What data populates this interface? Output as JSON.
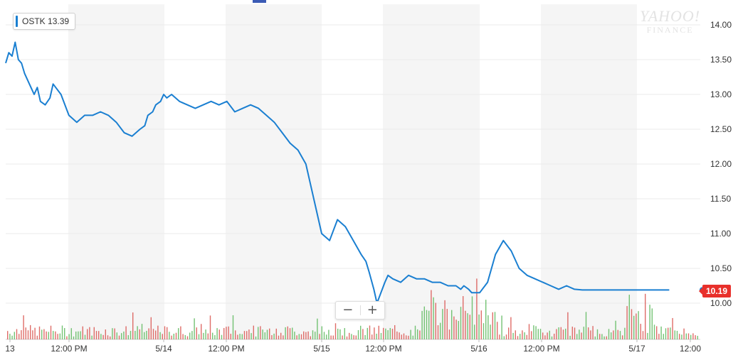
{
  "legend": {
    "symbol": "OSTK",
    "value": "13.39"
  },
  "last_price": "10.19",
  "watermark": {
    "line1": "YAHOO!",
    "line2": "FINANCE"
  },
  "zoom": {
    "minus": "−",
    "plus": "+"
  },
  "colors": {
    "line": "#1a7fd1",
    "up_volume": "#5cb85c",
    "down_volume": "#d9534f",
    "shade": "#f5f5f5",
    "grid": "#ebebeb",
    "price_badge": "#e8302b"
  },
  "chart_data": {
    "type": "line",
    "title": "",
    "xlabel": "",
    "ylabel": "",
    "ylim": [
      9.5,
      14.2
    ],
    "y_ticks": [
      "14.00",
      "13.50",
      "13.00",
      "12.50",
      "12.00",
      "11.50",
      "11.00",
      "10.50",
      "10.00"
    ],
    "x_ticks": [
      "13",
      "12:00 PM",
      "5/14",
      "12:00 PM",
      "5/15",
      "12:00 PM",
      "5/16",
      "12:00 PM",
      "5/17",
      "12:00"
    ],
    "grid": true,
    "legend_position": "top-left",
    "x": [
      0,
      0.02,
      0.04,
      0.06,
      0.08,
      0.1,
      0.12,
      0.15,
      0.18,
      0.2,
      0.22,
      0.25,
      0.28,
      0.3,
      0.35,
      0.4,
      0.45,
      0.5,
      0.55,
      0.6,
      0.65,
      0.7,
      0.75,
      0.8,
      0.85,
      0.88,
      0.9,
      0.93,
      0.95,
      0.98,
      1.0,
      1.02,
      1.05,
      1.1,
      1.15,
      1.2,
      1.25,
      1.3,
      1.35,
      1.4,
      1.45,
      1.5,
      1.55,
      1.6,
      1.65,
      1.7,
      1.75,
      1.8,
      1.85,
      1.9,
      1.95,
      2.0,
      2.05,
      2.1,
      2.15,
      2.2,
      2.25,
      2.28,
      2.3,
      2.33,
      2.35,
      2.4,
      2.42,
      2.45,
      2.5,
      2.55,
      2.6,
      2.65,
      2.7,
      2.75,
      2.8,
      2.85,
      2.88,
      2.9,
      2.93,
      2.95,
      3.0,
      3.05,
      3.1,
      3.15,
      3.2,
      3.25,
      3.3,
      3.35,
      3.4,
      3.45,
      3.5,
      3.55,
      3.6,
      3.65,
      3.7,
      3.75,
      3.8,
      3.85,
      3.88,
      3.9,
      3.92,
      3.95,
      4.0,
      4.05,
      4.1,
      4.15,
      4.2
    ],
    "series": [
      {
        "values": [
          13.45,
          13.6,
          13.55,
          13.75,
          13.5,
          13.45,
          13.3,
          13.15,
          13.0,
          13.1,
          12.9,
          12.85,
          12.95,
          13.15,
          13.0,
          12.7,
          12.6,
          12.7,
          12.7,
          12.75,
          12.7,
          12.6,
          12.45,
          12.4,
          12.5,
          12.55,
          12.7,
          12.75,
          12.85,
          12.9,
          13.0,
          12.95,
          13.0,
          12.9,
          12.85,
          12.8,
          12.85,
          12.9,
          12.85,
          12.9,
          12.75,
          12.8,
          12.85,
          12.8,
          12.7,
          12.6,
          12.45,
          12.3,
          12.2,
          12.0,
          11.5,
          11.0,
          10.9,
          11.2,
          11.1,
          10.9,
          10.7,
          10.6,
          10.45,
          10.2,
          10.0,
          10.3,
          10.4,
          10.35,
          10.3,
          10.4,
          10.35,
          10.35,
          10.3,
          10.3,
          10.25,
          10.25,
          10.2,
          10.25,
          10.2,
          10.15,
          10.15,
          10.3,
          10.7,
          10.9,
          10.75,
          10.5,
          10.4,
          10.35,
          10.3,
          10.25,
          10.2,
          10.25,
          10.2,
          10.19,
          10.19,
          10.19,
          10.19,
          10.19,
          10.19,
          10.19,
          10.19,
          10.19,
          10.19,
          10.19,
          10.19,
          10.19,
          10.19
        ]
      }
    ]
  }
}
